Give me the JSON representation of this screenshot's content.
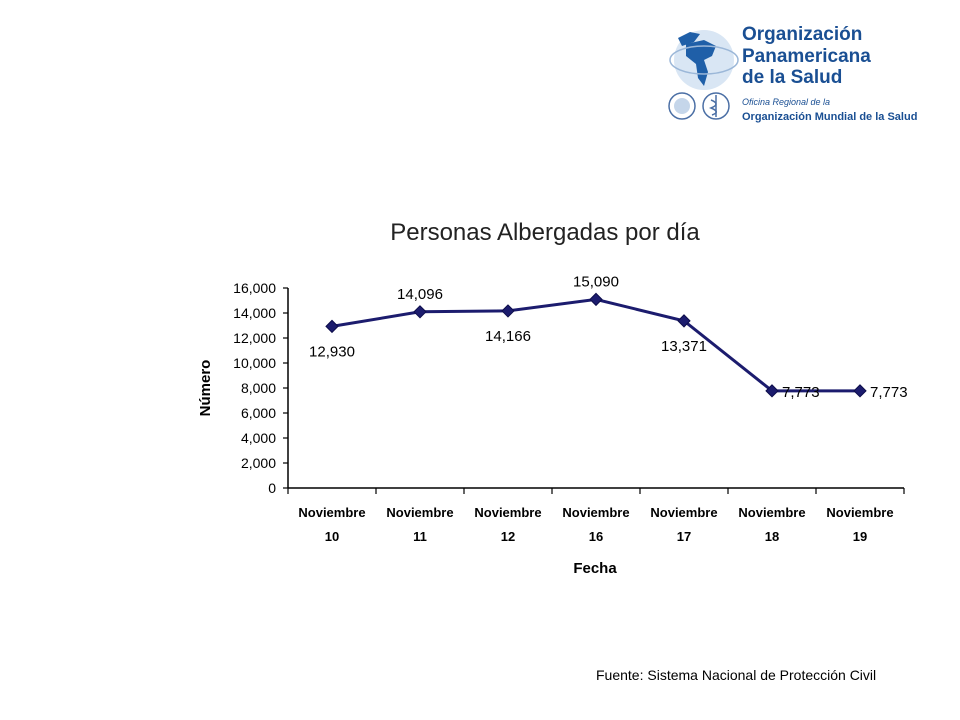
{
  "logo": {
    "org_line1": "Organización",
    "org_line2": "Panamericana",
    "org_line3": "de la Salud",
    "sub_line1": "Oficina Regional de la",
    "sub_line2": "Organización Mundial de la Salud",
    "brand_color": "#1f5fa8",
    "text_color": "#1a4f93"
  },
  "chart_data": {
    "type": "line",
    "title": "Personas Albergadas por día",
    "xlabel": "Fecha",
    "ylabel": "Número",
    "categories": [
      [
        "Noviembre",
        "10"
      ],
      [
        "Noviembre",
        "11"
      ],
      [
        "Noviembre",
        "12"
      ],
      [
        "Noviembre",
        "16"
      ],
      [
        "Noviembre",
        "17"
      ],
      [
        "Noviembre",
        "18"
      ],
      [
        "Noviembre",
        "19"
      ]
    ],
    "values": [
      12930,
      14096,
      14166,
      15090,
      13371,
      7773,
      7773
    ],
    "data_labels": [
      "12,930",
      "14,096",
      "14,166",
      "15,090",
      "13,371",
      "7,773",
      "7,773"
    ],
    "yticks": [
      "0",
      "2,000",
      "4,000",
      "6,000",
      "8,000",
      "10,000",
      "12,000",
      "14,000",
      "16,000"
    ],
    "ylim": [
      0,
      16000
    ],
    "grid": false,
    "legend": "none",
    "line_color": "#1c1c6e",
    "marker": "diamond"
  },
  "source": "Fuente:  Sistema Nacional de Protección Civil"
}
